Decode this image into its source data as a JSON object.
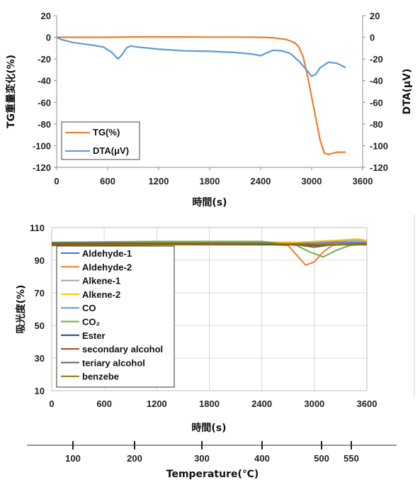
{
  "chart_data": [
    {
      "type": "line",
      "xlabel": "時間(s)",
      "ylabel": "TG重量変化(%)",
      "y2label": "DTA(μV)",
      "xlim": [
        0,
        3600
      ],
      "ylim": [
        -120,
        20
      ],
      "y2lim": [
        -120,
        20
      ],
      "x_ticks": [
        "0",
        "600",
        "1200",
        "1800",
        "2400",
        "3000",
        "3600"
      ],
      "y_ticks": [
        "20",
        "0",
        "-20",
        "-40",
        "-60",
        "-80",
        "-100",
        "-120"
      ],
      "y2_ticks": [
        "20",
        "0",
        "-20",
        "-40",
        "-60",
        "-80",
        "-100",
        "-120"
      ],
      "grid": false,
      "legend_position": "bottom-left",
      "series": [
        {
          "name": "TG(%)",
          "color": "#ED7D31",
          "axis": "left",
          "x": [
            0,
            300,
            600,
            900,
            1200,
            1500,
            1800,
            2100,
            2400,
            2550,
            2700,
            2800,
            2850,
            2900,
            2950,
            3000,
            3050,
            3100,
            3150,
            3200,
            3300,
            3400
          ],
          "y": [
            0,
            0,
            0,
            0.3,
            0.3,
            0.3,
            0.2,
            0.2,
            0,
            -0.5,
            -2,
            -5,
            -9,
            -18,
            -35,
            -55,
            -75,
            -95,
            -107,
            -108,
            -106,
            -106
          ]
        },
        {
          "name": "DTA(μV)",
          "color": "#5B9BD5",
          "axis": "right",
          "x": [
            0,
            50,
            200,
            400,
            550,
            650,
            720,
            760,
            820,
            870,
            950,
            1200,
            1500,
            1800,
            2100,
            2300,
            2400,
            2480,
            2550,
            2650,
            2750,
            2850,
            2950,
            3000,
            3050,
            3100,
            3200,
            3300,
            3400
          ],
          "y": [
            0,
            -2,
            -5,
            -7,
            -9,
            -14,
            -20,
            -17,
            -10,
            -8,
            -9,
            -11,
            -12.5,
            -13,
            -14,
            -15.5,
            -17,
            -14,
            -12,
            -12.5,
            -15,
            -22,
            -31,
            -36,
            -34,
            -28,
            -23,
            -24,
            -28
          ]
        }
      ]
    },
    {
      "type": "line",
      "xlabel": "時間(s)",
      "ylabel": "吸光度(%)",
      "secondary_xlabel": "Temperature(℃)",
      "xlim": [
        0,
        3600
      ],
      "ylim": [
        10,
        110
      ],
      "x_ticks": [
        "0",
        "600",
        "1200",
        "1800",
        "2400",
        "3000",
        "3600"
      ],
      "y_ticks": [
        "110",
        "90",
        "70",
        "50",
        "30",
        "10"
      ],
      "temperature_ticks": [
        "100",
        "200",
        "300",
        "400",
        "500",
        "550"
      ],
      "grid": true,
      "legend_position": "left",
      "series": [
        {
          "name": "Aldehyde-1",
          "color": "#4472C4",
          "x": [
            0,
            1200,
            2400,
            2700,
            3000,
            3300,
            3600
          ],
          "y": [
            100,
            100,
            100,
            100.5,
            101,
            101,
            101
          ]
        },
        {
          "name": "Aldehyde-2",
          "color": "#ED7D31",
          "x": [
            0,
            1200,
            2400,
            2700,
            2800,
            2900,
            3000,
            3100,
            3200,
            3400,
            3600
          ],
          "y": [
            100,
            100,
            100,
            99,
            93,
            87,
            89,
            95,
            99,
            100,
            100
          ]
        },
        {
          "name": "Alkene-1",
          "color": "#A5A5A5",
          "x": [
            0,
            1200,
            2400,
            2800,
            3100,
            3400,
            3600
          ],
          "y": [
            100,
            100.5,
            101,
            101,
            101.5,
            102,
            102
          ]
        },
        {
          "name": "Alkene-2",
          "color": "#FFC000",
          "x": [
            0,
            1200,
            2400,
            2800,
            3200,
            3500,
            3600
          ],
          "y": [
            100,
            101,
            101,
            101,
            102,
            103,
            102
          ]
        },
        {
          "name": "CO",
          "color": "#5B9BD5",
          "x": [
            0,
            1200,
            2400,
            2800,
            3100,
            3400,
            3600
          ],
          "y": [
            100,
            100,
            100,
            100,
            100,
            100,
            100
          ]
        },
        {
          "name": "CO₂",
          "color": "#70AD47",
          "x": [
            0,
            1200,
            2400,
            2800,
            2950,
            3100,
            3250,
            3400,
            3600
          ],
          "y": [
            101,
            101.5,
            101.5,
            99,
            95,
            92,
            96,
            99,
            100
          ]
        },
        {
          "name": "Ester",
          "color": "#264478",
          "x": [
            0,
            1200,
            2400,
            2800,
            3100,
            3400,
            3600
          ],
          "y": [
            99.5,
            99.5,
            99.5,
            99.5,
            99.5,
            99.5,
            99.5
          ]
        },
        {
          "name": "secondary alcohol",
          "color": "#9E480E",
          "x": [
            0,
            1200,
            2400,
            2800,
            3000,
            3200,
            3600
          ],
          "y": [
            100,
            100,
            100,
            99.5,
            99,
            99.5,
            100
          ]
        },
        {
          "name": "teriary alcohol",
          "color": "#636363",
          "x": [
            0,
            1200,
            2400,
            2800,
            3000,
            3200,
            3600
          ],
          "y": [
            100.5,
            100.5,
            100.5,
            99.5,
            98,
            99.5,
            100
          ]
        },
        {
          "name": "benzebe",
          "color": "#997300",
          "x": [
            0,
            1200,
            2400,
            2800,
            3100,
            3400,
            3600
          ],
          "y": [
            99,
            99.5,
            100,
            100,
            99.5,
            99.5,
            99.5
          ]
        }
      ]
    }
  ]
}
